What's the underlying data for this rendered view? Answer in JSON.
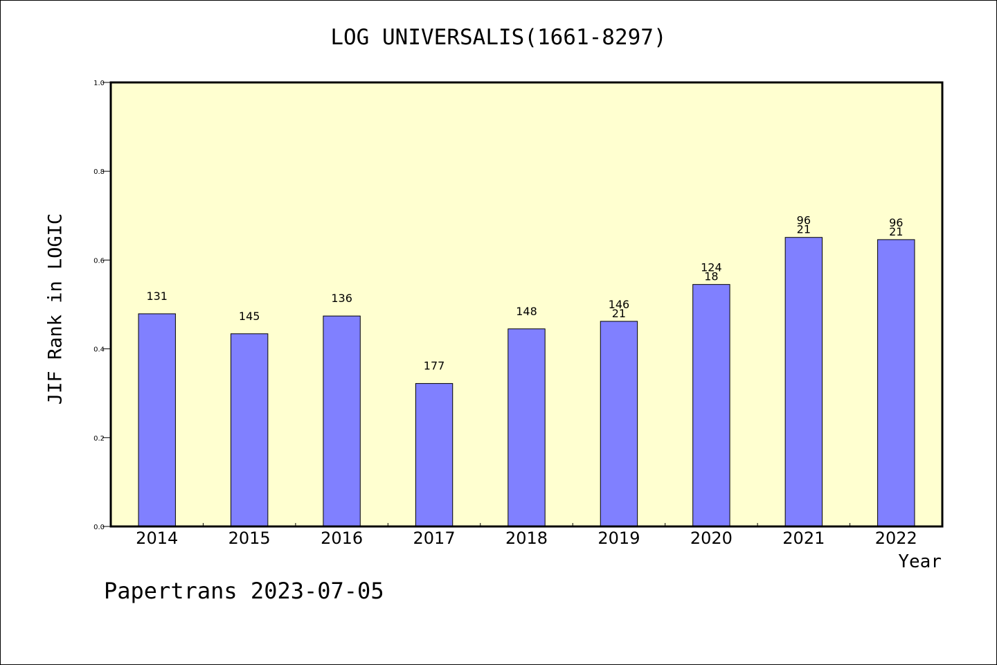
{
  "chart_data": {
    "type": "bar",
    "title": "LOG UNIVERSALIS(1661-8297)",
    "xlabel": "Year",
    "ylabel": "JIF Rank in LOGIC",
    "categories": [
      "2014",
      "2015",
      "2016",
      "2017",
      "2018",
      "2019",
      "2020",
      "2021",
      "2022"
    ],
    "values": [
      0.479,
      0.434,
      0.474,
      0.322,
      0.445,
      0.462,
      0.545,
      0.651,
      0.646
    ],
    "annotations": [
      [
        "131"
      ],
      [
        "145"
      ],
      [
        "136"
      ],
      [
        "177"
      ],
      [
        "148"
      ],
      [
        "146",
        "21"
      ],
      [
        "124",
        "18"
      ],
      [
        "96",
        "21"
      ],
      [
        "96",
        "21"
      ]
    ],
    "ylim": [
      0,
      1.0
    ],
    "yticks": [
      "0.0",
      "0.2",
      "0.4",
      "0.6",
      "0.8",
      "1.0"
    ],
    "grid": false,
    "colors": {
      "plot_bg": "#ffffd0",
      "bar": "#8080ff",
      "edge": "#000000"
    }
  },
  "footer": "Papertrans 2023-07-05"
}
